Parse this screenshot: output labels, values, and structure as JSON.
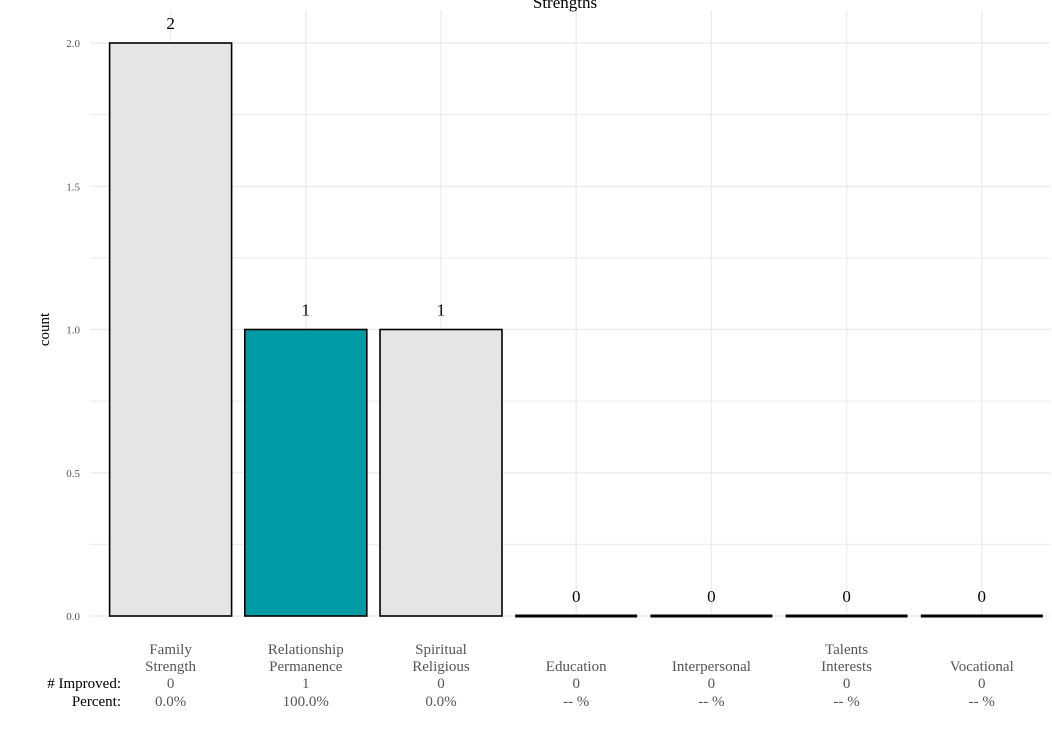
{
  "chart_data": {
    "type": "bar",
    "title": "Strengths",
    "ylabel": "count",
    "xlabel": "",
    "ylim": [
      0,
      2.0
    ],
    "y_ticks": [
      "0.0",
      "0.5",
      "1.0",
      "1.5",
      "2.0"
    ],
    "y_tick_values": [
      0,
      0.5,
      1.0,
      1.5,
      2.0
    ],
    "grid": true,
    "categories": [
      [
        "Family",
        "Strength"
      ],
      [
        "Relationship",
        "Permanence"
      ],
      [
        "Spiritual",
        "Religious"
      ],
      [
        "Education"
      ],
      [
        "Interpersonal"
      ],
      [
        "Talents",
        "Interests"
      ],
      [
        "Vocational"
      ]
    ],
    "values": [
      2,
      1,
      1,
      0,
      0,
      0,
      0
    ],
    "data_labels": [
      "2",
      "1",
      "1",
      "0",
      "0",
      "0",
      "0"
    ],
    "highlight": [
      false,
      true,
      false,
      false,
      false,
      false,
      false
    ],
    "colors": {
      "bar_fill": "#e5e5e5",
      "highlight_fill": "#009ca6",
      "bar_stroke": "#000000",
      "grid": "#ebebeb"
    },
    "row_labels": {
      "improved": "# Improved:",
      "percent": "Percent:"
    },
    "improved": [
      "0",
      "1",
      "0",
      "0",
      "0",
      "0",
      "0"
    ],
    "percent": [
      "0.0%",
      "100.0%",
      "0.0%",
      "-- %",
      "-- %",
      "-- %",
      "-- %"
    ]
  }
}
